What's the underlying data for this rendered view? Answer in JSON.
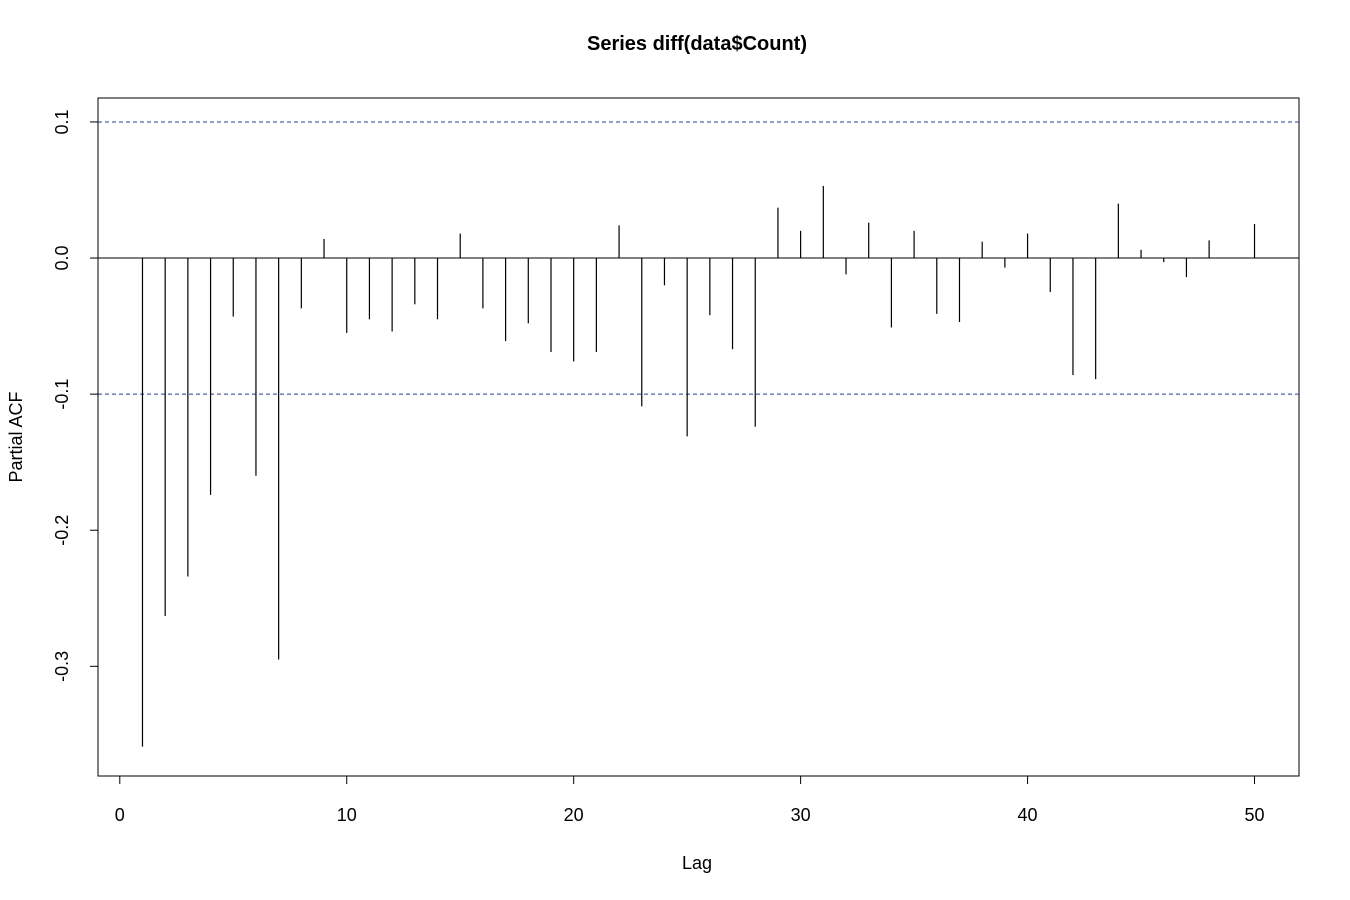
{
  "chart_data": {
    "type": "bar",
    "title": "Series  diff(data$Count)",
    "xlabel": "Lag",
    "ylabel": "Partial ACF",
    "xlim": [
      -0.96,
      51.96
    ],
    "ylim": [
      -0.3806,
      0.1176
    ],
    "x_ticks": [
      {
        "value": 0,
        "label": "0"
      },
      {
        "value": 10,
        "label": "10"
      },
      {
        "value": 20,
        "label": "20"
      },
      {
        "value": 30,
        "label": "30"
      },
      {
        "value": 40,
        "label": "40"
      },
      {
        "value": 50,
        "label": "50"
      }
    ],
    "y_ticks": [
      {
        "value": -0.3,
        "label": "-0.3"
      },
      {
        "value": -0.2,
        "label": "-0.2"
      },
      {
        "value": -0.1,
        "label": "-0.1"
      },
      {
        "value": 0.0,
        "label": "0.0"
      },
      {
        "value": 0.1,
        "label": "0.1"
      }
    ],
    "confidence_bounds": [
      0.1,
      -0.1
    ],
    "lags": [
      1,
      2,
      3,
      4,
      5,
      6,
      7,
      8,
      9,
      10,
      11,
      12,
      13,
      14,
      15,
      16,
      17,
      18,
      19,
      20,
      21,
      22,
      23,
      24,
      25,
      26,
      27,
      28,
      29,
      30,
      31,
      32,
      33,
      34,
      35,
      36,
      37,
      38,
      39,
      40,
      41,
      42,
      43,
      44,
      45,
      46,
      47,
      48,
      49,
      50
    ],
    "values": [
      -0.359,
      -0.263,
      -0.234,
      -0.174,
      -0.043,
      -0.16,
      -0.295,
      -0.037,
      0.014,
      -0.055,
      -0.045,
      -0.054,
      -0.034,
      -0.045,
      0.018,
      -0.037,
      -0.061,
      -0.048,
      -0.069,
      -0.076,
      -0.069,
      0.024,
      -0.109,
      -0.02,
      -0.131,
      -0.042,
      -0.067,
      -0.124,
      0.037,
      0.02,
      0.053,
      -0.012,
      0.026,
      -0.051,
      0.02,
      -0.041,
      -0.047,
      0.012,
      -0.007,
      0.018,
      -0.025,
      -0.086,
      -0.089,
      0.04,
      0.006,
      -0.003,
      -0.014,
      0.013,
      0.0,
      0.025
    ]
  }
}
